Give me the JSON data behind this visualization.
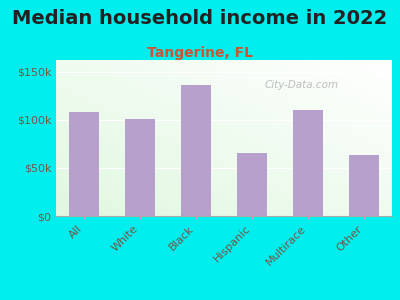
{
  "title": "Median household income in 2022",
  "subtitle": "Tangerine, FL",
  "categories": [
    "All",
    "White",
    "Black",
    "Hispanic",
    "Multirace",
    "Other"
  ],
  "values": [
    108000,
    101000,
    136000,
    65000,
    110000,
    63000
  ],
  "bar_color": "#b8a0cc",
  "title_fontsize": 14,
  "subtitle_fontsize": 10,
  "subtitle_color": "#cc5533",
  "title_color": "#222222",
  "background_color": "#00eeee",
  "ytick_labels": [
    "$0",
    "$50k",
    "$100k",
    "$150k"
  ],
  "ytick_values": [
    0,
    50000,
    100000,
    150000
  ],
  "ylim": [
    0,
    162000
  ],
  "watermark": "City-Data.com",
  "axis_label_color": "#775544",
  "tick_label_fontsize": 8,
  "xlabel_fontsize": 8
}
